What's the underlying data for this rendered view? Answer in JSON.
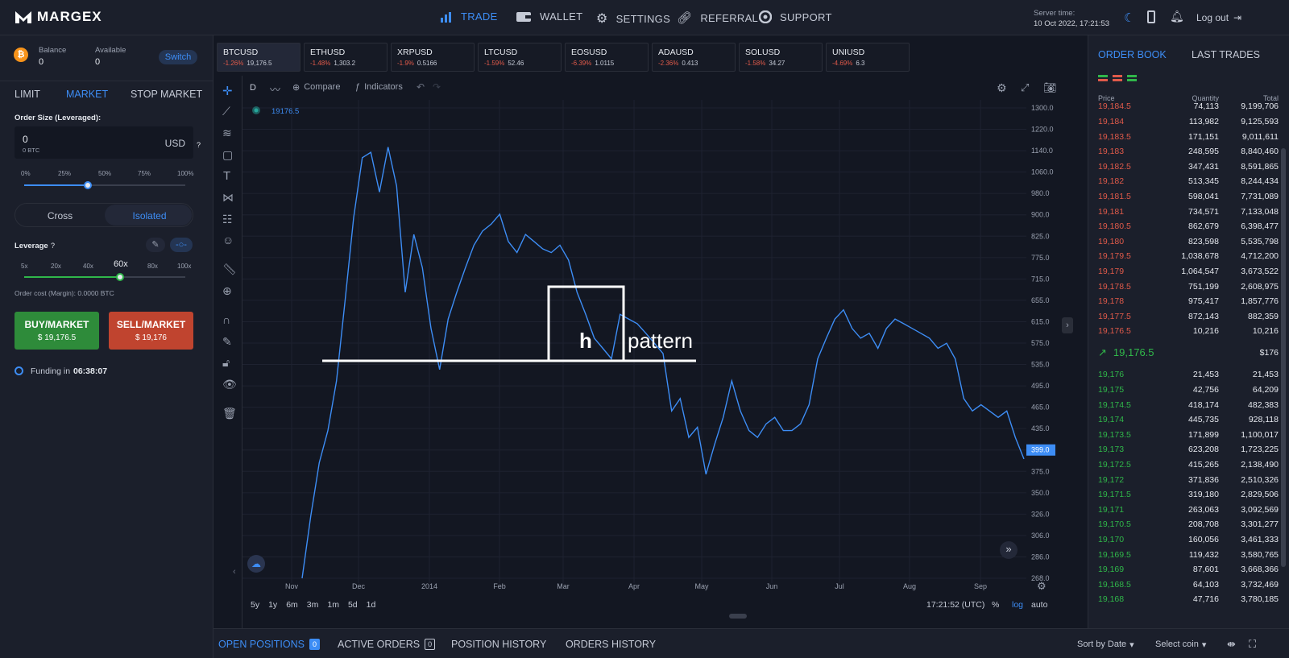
{
  "header": {
    "brand": "MARGEX",
    "nav": [
      {
        "label": "TRADE",
        "icon": "bar-chart-icon",
        "active": true
      },
      {
        "label": "WALLET",
        "icon": "wallet-icon"
      },
      {
        "label": "SETTINGS",
        "icon": "gear-icon"
      },
      {
        "label": "REFERRAL",
        "icon": "link-icon"
      },
      {
        "label": "SUPPORT",
        "icon": "lifebuoy-icon"
      }
    ],
    "server_time_label": "Server time:",
    "server_time_value": "10 Oct 2022, 17:21:53",
    "logout_label": "Log out"
  },
  "account": {
    "balance_label": "Balance",
    "balance_value": "0",
    "available_label": "Available",
    "available_value": "0",
    "switch_label": "Switch"
  },
  "order_form": {
    "tabs": [
      "LIMIT",
      "MARKET",
      "STOP MARKET"
    ],
    "active_tab": "MARKET",
    "order_size_label": "Order Size (Leveraged):",
    "order_size_value": "0",
    "order_size_sub": "0 BTC",
    "currency": "USD",
    "help": "?",
    "size_ticks": [
      "0%",
      "25%",
      "50%",
      "75%",
      "100%"
    ],
    "size_fraction": 0.5,
    "margin_modes": [
      "Cross",
      "Isolated"
    ],
    "active_margin_mode": "Isolated",
    "leverage_label": "Leverage",
    "leverage_ticks": [
      "5x",
      "20x",
      "40x",
      "60x",
      "80x",
      "100x"
    ],
    "leverage_selected": "60x",
    "order_cost": "Order cost (Margin): 0.0000 BTC",
    "buy_label": "BUY/MARKET",
    "buy_price": "$ 19,176.5",
    "sell_label": "SELL/MARKET",
    "sell_price": "$ 19,176",
    "funding_label": "Funding in",
    "funding_value": "06:38:07",
    "colors": {
      "buy": "#2e8b3a",
      "sell": "#c0442f",
      "accent": "#3d8df5"
    }
  },
  "tickers": [
    {
      "symbol": "BTCUSD",
      "change": "-1.26%",
      "price": "19,176.5",
      "active": true
    },
    {
      "symbol": "ETHUSD",
      "change": "-1.48%",
      "price": "1,303.2"
    },
    {
      "symbol": "XRPUSD",
      "change": "-1.9%",
      "price": "0.5166"
    },
    {
      "symbol": "LTCUSD",
      "change": "-1.59%",
      "price": "52.46"
    },
    {
      "symbol": "EOSUSD",
      "change": "-6.39%",
      "price": "1.0115"
    },
    {
      "symbol": "ADAUSD",
      "change": "-2.36%",
      "price": "0.413"
    },
    {
      "symbol": "SOLUSD",
      "change": "-1.58%",
      "price": "34.27"
    },
    {
      "symbol": "UNIUSD",
      "change": "-4.69%",
      "price": "6.3"
    }
  ],
  "chart_toolbar": {
    "interval": "D",
    "compare": "Compare",
    "indicators": "Indicators",
    "legend_value": "19176.5"
  },
  "chart_data": {
    "type": "line",
    "y_scale": "log",
    "price_ticks": [
      "1300.0",
      "1220.0",
      "1140.0",
      "1060.0",
      "980.0",
      "900.0",
      "825.0",
      "775.0",
      "715.0",
      "655.0",
      "615.0",
      "575.0",
      "535.0",
      "495.0",
      "465.0",
      "435.0",
      "399.0",
      "375.0",
      "350.0",
      "326.0",
      "306.0",
      "286.0",
      "268.0"
    ],
    "last_price_label": "399.0",
    "x_ticks": [
      "Nov",
      "Dec",
      "2014",
      "Feb",
      "Mar",
      "Apr",
      "May",
      "Jun",
      "Jul",
      "Aug",
      "Sep"
    ],
    "annotation_left": "h",
    "annotation_right": "pattern",
    "series": [
      {
        "color": "#3d8df5",
        "values": [
          268,
          330,
          395,
          440,
          520,
          680,
          900,
          1100,
          1120,
          980,
          1140,
          1000,
          700,
          850,
          760,
          620,
          540,
          640,
          700,
          760,
          820,
          860,
          880,
          910,
          830,
          800,
          850,
          830,
          810,
          800,
          820,
          780,
          700,
          650,
          600,
          580,
          560,
          650,
          640,
          630,
          610,
          590,
          570,
          470,
          490,
          430,
          445,
          380,
          420,
          460,
          520,
          470,
          440,
          430,
          450,
          460,
          440,
          440,
          450,
          480,
          560,
          600,
          640,
          660,
          620,
          600,
          610,
          580,
          620,
          640,
          630,
          620,
          610,
          600,
          580,
          590,
          560,
          490,
          470,
          480,
          470,
          460,
          470,
          430,
          400
        ]
      }
    ]
  },
  "range_buttons": [
    "5y",
    "1y",
    "6m",
    "3m",
    "1m",
    "5d",
    "1d"
  ],
  "chart_footer": {
    "time": "17:21:52 (UTC)",
    "percent": "%",
    "log": "log",
    "auto": "auto"
  },
  "orderbook": {
    "tabs": [
      "ORDER BOOK",
      "LAST TRADES"
    ],
    "headers": [
      "Price",
      "Quantity",
      "Total"
    ],
    "asks": [
      [
        "19,184.5",
        "74,113",
        "9,199,706"
      ],
      [
        "19,184",
        "113,982",
        "9,125,593"
      ],
      [
        "19,183.5",
        "171,151",
        "9,011,611"
      ],
      [
        "19,183",
        "248,595",
        "8,840,460"
      ],
      [
        "19,182.5",
        "347,431",
        "8,591,865"
      ],
      [
        "19,182",
        "513,345",
        "8,244,434"
      ],
      [
        "19,181.5",
        "598,041",
        "7,731,089"
      ],
      [
        "19,181",
        "734,571",
        "7,133,048"
      ],
      [
        "19,180.5",
        "862,679",
        "6,398,477"
      ],
      [
        "19,180",
        "823,598",
        "5,535,798"
      ],
      [
        "19,179.5",
        "1,038,678",
        "4,712,200"
      ],
      [
        "19,179",
        "1,064,547",
        "3,673,522"
      ],
      [
        "19,178.5",
        "751,199",
        "2,608,975"
      ],
      [
        "19,178",
        "975,417",
        "1,857,776"
      ],
      [
        "19,177.5",
        "872,143",
        "882,359"
      ],
      [
        "19,176.5",
        "10,216",
        "10,216"
      ]
    ],
    "spread_price": "19,176.5",
    "spread_total": "$176",
    "bids": [
      [
        "19,176",
        "21,453",
        "21,453"
      ],
      [
        "19,175",
        "42,756",
        "64,209"
      ],
      [
        "19,174.5",
        "418,174",
        "482,383"
      ],
      [
        "19,174",
        "445,735",
        "928,118"
      ],
      [
        "19,173.5",
        "171,899",
        "1,100,017"
      ],
      [
        "19,173",
        "623,208",
        "1,723,225"
      ],
      [
        "19,172.5",
        "415,265",
        "2,138,490"
      ],
      [
        "19,172",
        "371,836",
        "2,510,326"
      ],
      [
        "19,171.5",
        "319,180",
        "2,829,506"
      ],
      [
        "19,171",
        "263,063",
        "3,092,569"
      ],
      [
        "19,170.5",
        "208,708",
        "3,301,277"
      ],
      [
        "19,170",
        "160,056",
        "3,461,333"
      ],
      [
        "19,169.5",
        "119,432",
        "3,580,765"
      ],
      [
        "19,169",
        "87,601",
        "3,668,366"
      ],
      [
        "19,168.5",
        "64,103",
        "3,732,469"
      ],
      [
        "19,168",
        "47,716",
        "3,780,185"
      ]
    ]
  },
  "bottom": {
    "tabs": [
      {
        "label": "OPEN POSITIONS",
        "count": "0",
        "active": true
      },
      {
        "label": "ACTIVE ORDERS",
        "count": "0"
      },
      {
        "label": "POSITION HISTORY"
      },
      {
        "label": "ORDERS HISTORY"
      }
    ],
    "sort_label": "Sort by Date",
    "coin_label": "Select coin"
  }
}
